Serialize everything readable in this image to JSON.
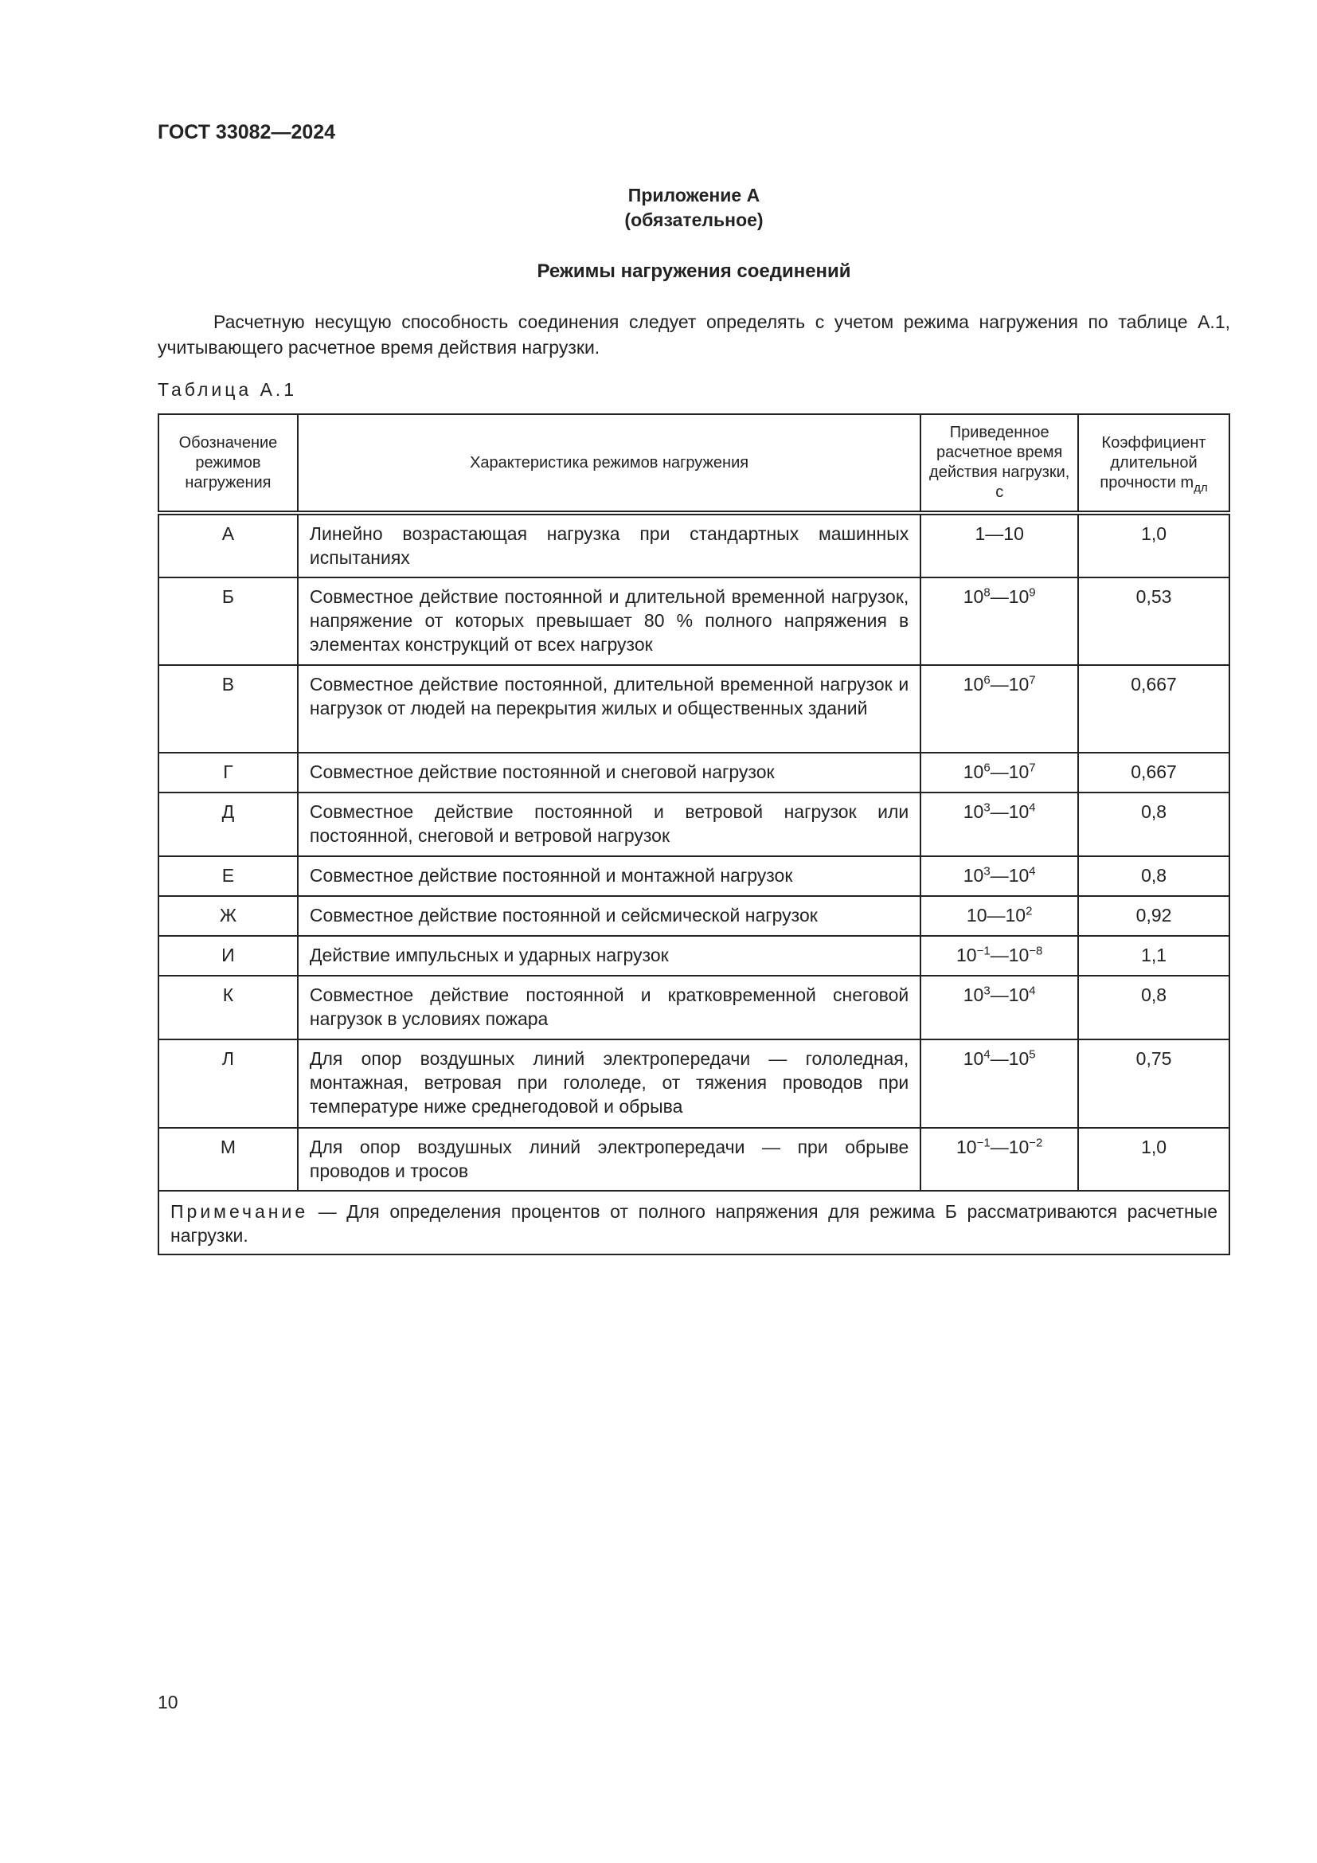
{
  "document_code": "ГОСТ 33082—2024",
  "appendix": {
    "title": "Приложение А",
    "status": "(обязательное)"
  },
  "heading": "Режимы нагружения соединений",
  "paragraph": "Расчетную несущую способность соединения следует определять с учетом режима нагружения по таблице А.1, учитывающего расчетное время действия нагрузки.",
  "table_caption": "Таблица А.1",
  "table": {
    "headers": [
      "Обозначение режимов нагружения",
      "Характеристика режимов нагружения",
      "Приведенное расчетное время действия нагрузки, с",
      "Коэффициент длительной прочности m",
      "дл"
    ],
    "rows": [
      {
        "mode": "А",
        "desc": "Линейно возрастающая нагрузка при стандартных машинных испытаниях",
        "t_from": "1",
        "t_from_exp": "",
        "t_to": "10",
        "t_to_exp": "",
        "coef": "1,0",
        "h": 81
      },
      {
        "mode": "Б",
        "desc": "Совместное действие постоянной и длительной временной нагрузок, напряжение от которых превышает 80 % полного напряжения в элементах конструкций от всех нагрузок",
        "t_from": "10",
        "t_from_exp": "8",
        "t_to": "10",
        "t_to_exp": "9",
        "coef": "0,53",
        "h": 110
      },
      {
        "mode": "В",
        "desc": "Совместное действие постоянной, длительной временной нагрузок и нагрузок от людей на перекрытия жилых и общественных зданий",
        "t_from": "10",
        "t_from_exp": "6",
        "t_to": "10",
        "t_to_exp": "7",
        "coef": "0,667",
        "h": 110
      },
      {
        "mode": "Г",
        "desc": "Совместное действие постоянной и снеговой нагрузок",
        "t_from": "10",
        "t_from_exp": "6",
        "t_to": "10",
        "t_to_exp": "7",
        "coef": "0,667",
        "h": 50
      },
      {
        "mode": "Д",
        "desc": "Совместное действие постоянной и ветровой нагрузок или постоянной, снеговой и ветровой нагрузок",
        "t_from": "10",
        "t_from_exp": "3",
        "t_to": "10",
        "t_to_exp": "4",
        "coef": "0,8",
        "h": 80
      },
      {
        "mode": "Е",
        "desc": "Совместное действие постоянной и монтажной нагрузок",
        "t_from": "10",
        "t_from_exp": "3",
        "t_to": "10",
        "t_to_exp": "4",
        "coef": "0,8",
        "h": 50
      },
      {
        "mode": "Ж",
        "desc": "Совместное действие постоянной и сейсмической нагрузок",
        "t_from": "10",
        "t_from_exp": "",
        "t_to": "10",
        "t_to_exp": "2",
        "coef": "0,92",
        "h": 50
      },
      {
        "mode": "И",
        "desc": "Действие импульсных и ударных нагрузок",
        "t_from": "10",
        "t_from_exp": "−1",
        "t_to": "10",
        "t_to_exp": "−8",
        "coef": "1,1",
        "h": 50
      },
      {
        "mode": "К",
        "desc": "Совместное действие постоянной и кратковременной снеговой нагрузок в условиях пожара",
        "t_from": "10",
        "t_from_exp": "3",
        "t_to": "10",
        "t_to_exp": "4",
        "coef": "0,8",
        "h": 80
      },
      {
        "mode": "Л",
        "desc": "Для опор воздушных линий электропередачи — гололедная, монтажная, ветровая при гололеде, от тяжения проводов при температуре ниже среднегодовой и обрыва",
        "t_from": "10",
        "t_from_exp": "4",
        "t_to": "10",
        "t_to_exp": "5",
        "coef": "0,75",
        "h": 111
      },
      {
        "mode": "М",
        "desc": "Для опор воздушных линий электропередачи — при обрыве проводов и тросов",
        "t_from": "10",
        "t_from_exp": "−1",
        "t_to": "10",
        "t_to_exp": "−2",
        "coef": "1,0",
        "h": 79
      }
    ],
    "note_label": "Примечание",
    "note_text": " — Для определения процентов от полного напряжения для режима Б рассматриваются расчетные нагрузки."
  },
  "page_number": "10"
}
